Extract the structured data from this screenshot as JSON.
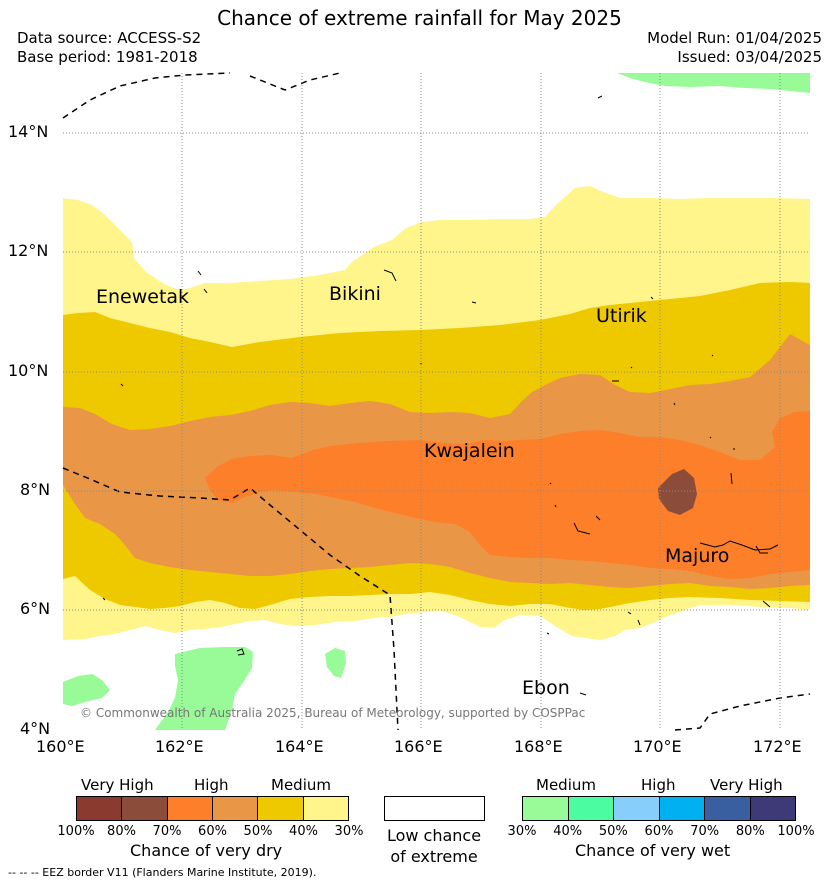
{
  "title": "Chance of extreme rainfall for May 2025",
  "header": {
    "data_source": "Data source: ACCESS-S2",
    "base_period": "Base period: 1981-2018",
    "model_run": "Model Run: 01/04/2025",
    "issued": "Issued: 03/04/2025"
  },
  "axes": {
    "lat_ticks": [
      "14°N",
      "12°N",
      "10°N",
      "8°N",
      "6°N",
      "4°N"
    ],
    "lon_ticks": [
      "160°E",
      "162°E",
      "164°E",
      "166°E",
      "168°E",
      "170°E",
      "172°E"
    ]
  },
  "places": {
    "enewetak": "Enewetak",
    "bikini": "Bikini",
    "utirik": "Utirik",
    "kwajalein": "Kwajalein",
    "majuro": "Majuro",
    "ebon": "Ebon"
  },
  "copyright": "© Commonwealth of Australia 2025, Bureau of Meteorology, supported by COSPPac",
  "dry_legend": {
    "categories": [
      "Very High",
      "High",
      "Medium"
    ],
    "colors": [
      "#8b3a2f",
      "#8b4c3a",
      "#fd7f2a",
      "#ea9647",
      "#eec900",
      "#fff58a"
    ],
    "ticks": [
      "100%",
      "80%",
      "70%",
      "60%",
      "50%",
      "40%",
      "30%"
    ],
    "title": "Chance of very dry"
  },
  "neutral_legend": {
    "line1": "Low chance",
    "line2": "of extreme",
    "color": "#ffffff"
  },
  "wet_legend": {
    "categories": [
      "Medium",
      "High",
      "Very High"
    ],
    "colors": [
      "#98fb98",
      "#4cfca0",
      "#87cefa",
      "#00b0f0",
      "#3a5fa0",
      "#3e3a78"
    ],
    "ticks": [
      "30%",
      "40%",
      "50%",
      "60%",
      "70%",
      "80%",
      "100%"
    ],
    "title": "Chance of very wet"
  },
  "footnote": "--  --  -- EEZ border V11 (Flanders Marine Institute, 2019)."
}
